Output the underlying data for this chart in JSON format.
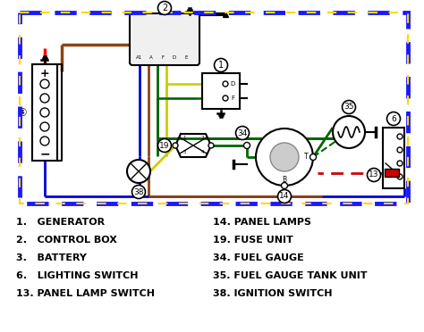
{
  "bg_color": "#ffffff",
  "legend_left": [
    "1.   GENERATOR",
    "2.   CONTROL BOX",
    "3.   BATTERY",
    "6.   LIGHTING SWITCH",
    "13. PANEL LAMP SWITCH"
  ],
  "legend_right": [
    "14. PANEL LAMPS",
    "19. FUSE UNIT",
    "34. FUEL GAUGE",
    "35. FUEL GAUGE TANK UNIT",
    "38. IGNITION SWITCH"
  ]
}
